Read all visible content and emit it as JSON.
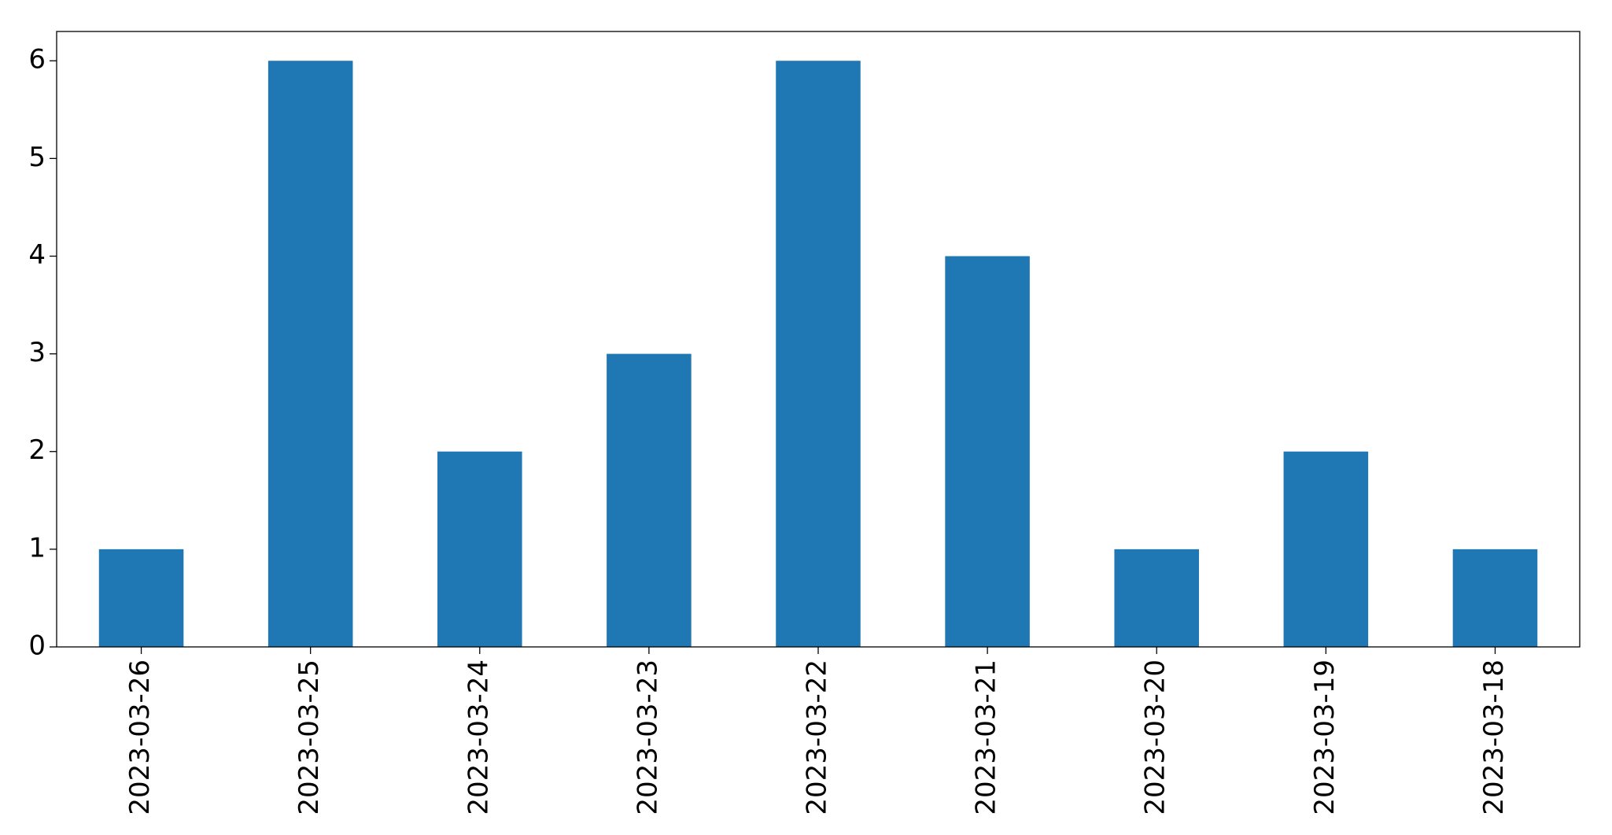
{
  "chart_data": {
    "type": "bar",
    "categories": [
      "2023-03-26",
      "2023-03-25",
      "2023-03-24",
      "2023-03-23",
      "2023-03-22",
      "2023-03-21",
      "2023-03-20",
      "2023-03-19",
      "2023-03-18"
    ],
    "values": [
      1,
      6,
      2,
      3,
      6,
      4,
      1,
      2,
      1
    ],
    "color": "#1f77b4",
    "ylim": [
      0,
      6.3
    ],
    "yticks": [
      0,
      1,
      2,
      3,
      4,
      5,
      6
    ],
    "grid": false
  }
}
